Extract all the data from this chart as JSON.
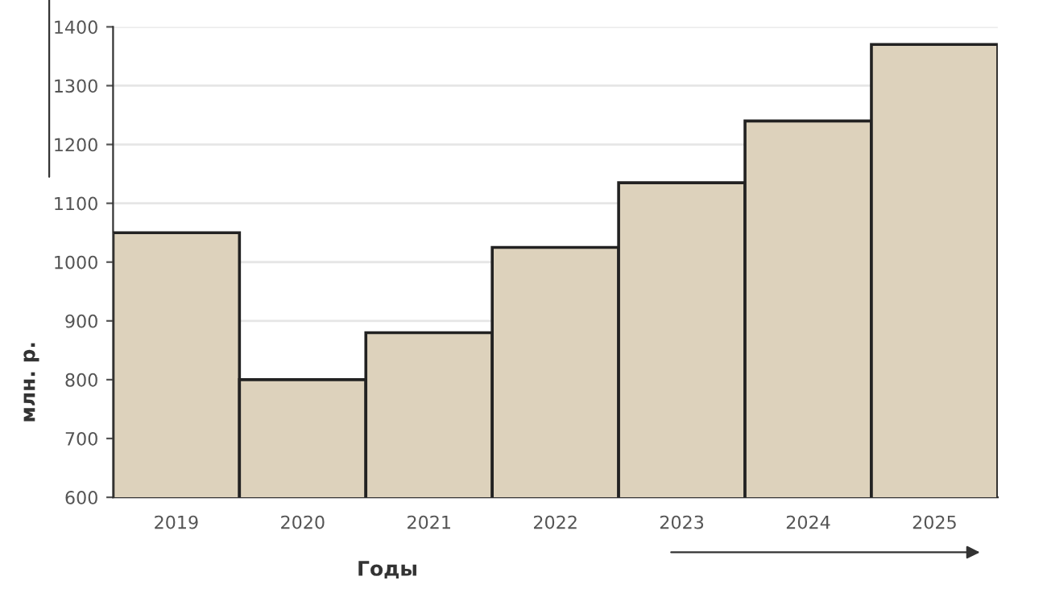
{
  "chart_data": {
    "type": "bar",
    "xlabel": "Годы",
    "ylabel": "млн. р.",
    "categories": [
      "2019",
      "2020",
      "2021",
      "2022",
      "2023",
      "2024",
      "2025"
    ],
    "values": [
      1050,
      800,
      880,
      1025,
      1135,
      1240,
      1370
    ],
    "color": "#ddd2bc",
    "ylim": [
      600,
      1400
    ],
    "yticks": [
      600,
      700,
      800,
      900,
      1000,
      1100,
      1200,
      1300,
      1400
    ],
    "grid": "y"
  }
}
